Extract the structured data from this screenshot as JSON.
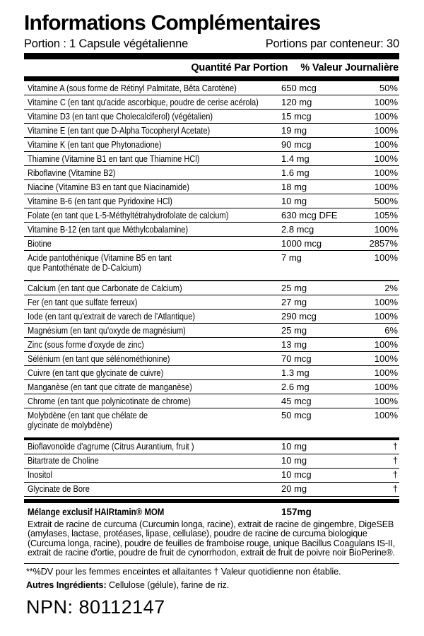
{
  "header": {
    "title": "Informations Complémentaires"
  },
  "serving": {
    "size_label": "Portion : 1 Capsule végétalienne",
    "count_label": "Portions par conteneur: 30"
  },
  "table": {
    "columns": {
      "amount_header": "Quantité Par Portion",
      "dv_header": "% Valeur Journalière"
    },
    "groups": [
      {
        "rows": [
          {
            "name": "Vitamine A (sous forme de Rétinyl Palmitate, Bêta Carotène)",
            "amount": "650 mcg",
            "dv": "50%"
          },
          {
            "name": "Vitamine C (en tant qu'acide ascorbique, poudre de cerise acérola)",
            "amount": "120 mg",
            "dv": "100%"
          },
          {
            "name": "Vitamine D3 (en tant que Cholecalciferol) (végétalien)",
            "amount": "15 mcg",
            "dv": "100%"
          },
          {
            "name": "Vitamine E (en tant que D-Alpha Tocopheryl Acetate)",
            "amount": "19 mg",
            "dv": "100%"
          },
          {
            "name": "Vitamine K (en tant que Phytonadione)",
            "amount": "90 mcg",
            "dv": "100%"
          },
          {
            "name": "Thiamine (Vitamine B1 en tant que Thiamine HCl)",
            "amount": "1.4 mg",
            "dv": "100%"
          },
          {
            "name": "Riboflavine (Vitamine B2)",
            "amount": "1.6 mg",
            "dv": "100%"
          },
          {
            "name": "Niacine (Vitamine B3 en tant que Niacinamide)",
            "amount": "18 mg",
            "dv": "100%"
          },
          {
            "name": "Vitamine B-6 (en tant que Pyridoxine HCl)",
            "amount": "10 mg",
            "dv": "500%"
          },
          {
            "name": "Folate (en tant que L-5-Méthyltétrahydrofolate de calcium)",
            "amount": "630 mcg DFE",
            "dv": "105%"
          },
          {
            "name": "Vitamine B-12 (en tant que Méthylcobalamine)",
            "amount": "2.8 mcg",
            "dv": "100%"
          },
          {
            "name": "Biotine",
            "amount": "1000 mcg",
            "dv": "2857%"
          },
          {
            "name": "Acide pantothénique (Vitamine B5 en tant\nque Pantothénate de D-Calcium)",
            "amount": "7 mg",
            "dv": "100%"
          }
        ]
      },
      {
        "rows": [
          {
            "name": "Calcium (en tant que Carbonate de Calcium)",
            "amount": "25 mg",
            "dv": "2%"
          },
          {
            "name": "Fer (en tant que sulfate ferreux)",
            "amount": "27 mg",
            "dv": "100%"
          },
          {
            "name": "Iode (en tant qu'extrait de varech de l'Atlantique)",
            "amount": "290 mcg",
            "dv": "100%"
          },
          {
            "name": "Magnésium (en tant qu'oxyde de magnésium)",
            "amount": "25 mg",
            "dv": "6%"
          },
          {
            "name": "Zinc (sous forme d'oxyde de zinc)",
            "amount": "13 mg",
            "dv": "100%"
          },
          {
            "name": "Sélénium (en tant que sélénométhionine)",
            "amount": "70 mcg",
            "dv": "100%"
          },
          {
            "name": "Cuivre (en tant que glycinate de cuivre)",
            "amount": "1.3 mg",
            "dv": "100%"
          },
          {
            "name": "Manganèse (en tant que citrate de manganèse)",
            "amount": "2.6 mg",
            "dv": "100%"
          },
          {
            "name": "Chrome (en tant que polynicotinate de chrome)",
            "amount": "45 mcg",
            "dv": "100%"
          },
          {
            "name": "Molybdène (en tant que chélate de\nglycinate de molybdène)",
            "amount": "50 mcg",
            "dv": "100%"
          }
        ]
      },
      {
        "rows": [
          {
            "name": "Bioflavonoïde d'agrume (Citrus Aurantium, fruit )",
            "amount": "10 mg",
            "dv": "†"
          },
          {
            "name": "Bitartrate de Choline",
            "amount": "10 mg",
            "dv": "†"
          },
          {
            "name": "Inositol",
            "amount": "10 mcg",
            "dv": "†"
          },
          {
            "name": "Glycinate de Bore",
            "amount": "20 mg",
            "dv": "†"
          }
        ]
      }
    ]
  },
  "blend": {
    "name": "Mélange exclusif HAIRtamin® MOM",
    "amount": "157mg",
    "description": "Extrait de racine de curcuma (Curcumin longa, racine), extrait de racine de gingembre, DigeSEB (amylases, lactase, protéases, lipase, cellulase), poudre de racine de curcuma biologique (Curcuma longa, racine), poudre de feuilles de framboise rouge, unique Bacillus Coagulans IS-II, extrait de racine d'ortie, poudre de fruit de cynorrhodon, extrait de fruit de poivre noir BioPerine®."
  },
  "footnotes": {
    "dv_note": "**%DV pour les femmes enceintes et allaitantes † Valeur quotidienne non établie.",
    "other_ingredients_label": "Autres Ingrédients:",
    "other_ingredients_value": " Cellulose (gélule), farine de riz."
  },
  "npn": "NPN: 80112147",
  "colors": {
    "ink": "#000000",
    "paper": "#ffffff"
  }
}
